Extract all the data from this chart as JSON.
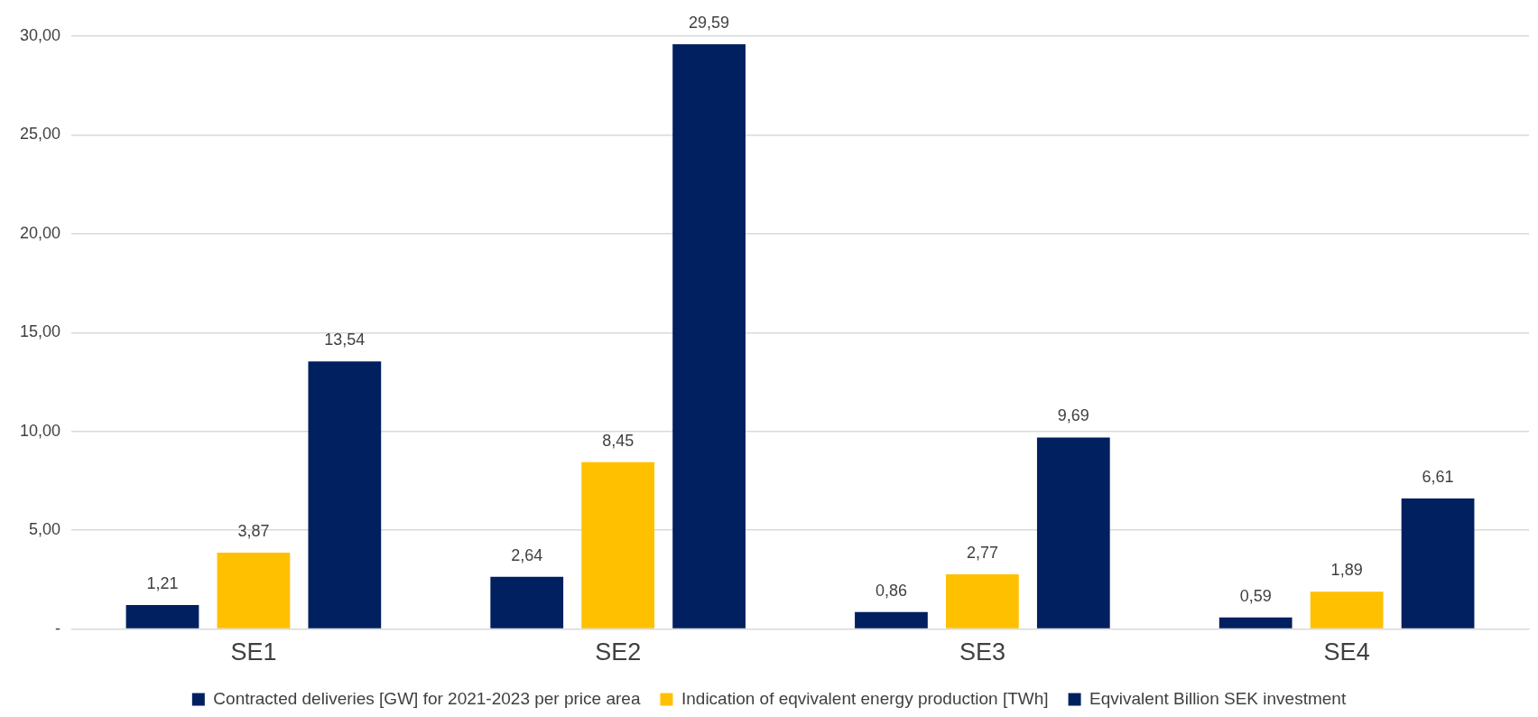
{
  "chart_data": {
    "type": "bar",
    "categories": [
      "SE1",
      "SE2",
      "SE3",
      "SE4"
    ],
    "series": [
      {
        "name": "Contracted deliveries [GW] for 2021-2023 per price area",
        "color": "#002060",
        "values": [
          1.21,
          2.64,
          0.86,
          0.59
        ],
        "value_labels": [
          "1,21",
          "2,64",
          "0,86",
          "0,59"
        ]
      },
      {
        "name": "Indication of eqvivalent energy production [TWh]",
        "color": "#ffc000",
        "values": [
          3.87,
          8.45,
          2.77,
          1.89
        ],
        "value_labels": [
          "3,87",
          "8,45",
          "2,77",
          "1,89"
        ]
      },
      {
        "name": "Eqvivalent Billion SEK investment",
        "color": "#002060",
        "values": [
          13.54,
          29.59,
          9.69,
          6.61
        ],
        "value_labels": [
          "13,54",
          "29,59",
          "9,69",
          "6,61"
        ]
      }
    ],
    "ylim": [
      0,
      30
    ],
    "yticks": [
      {
        "value": 0,
        "label": "-"
      },
      {
        "value": 5,
        "label": "5,00"
      },
      {
        "value": 10,
        "label": "10,00"
      },
      {
        "value": 15,
        "label": "15,00"
      },
      {
        "value": 20,
        "label": "20,00"
      },
      {
        "value": 25,
        "label": "25,00"
      },
      {
        "value": 30,
        "label": "30,00"
      }
    ],
    "grid": "y",
    "legend": "bottom"
  }
}
